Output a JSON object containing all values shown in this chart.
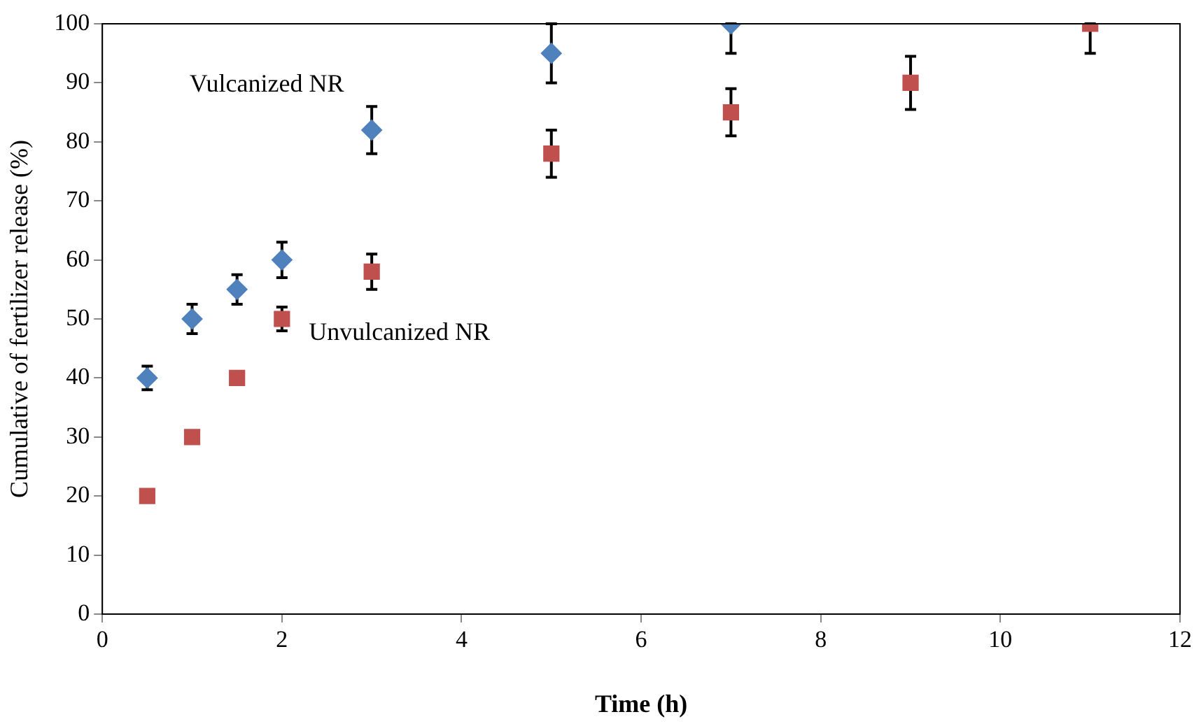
{
  "chart_data": {
    "type": "scatter",
    "xlabel": "Time (h)",
    "ylabel": "Cumulative of fertilizer release (%)",
    "xlim": [
      0,
      12
    ],
    "xticks": [
      0,
      2,
      4,
      6,
      8,
      10,
      12
    ],
    "ylim": [
      0,
      100
    ],
    "yticks": [
      0,
      10,
      20,
      30,
      40,
      50,
      60,
      70,
      80,
      90,
      100
    ],
    "grid": false,
    "legend": false,
    "series": [
      {
        "name": "Vulcanized NR",
        "color": "#4f81bd",
        "marker": "diamond",
        "x": [
          0.5,
          1,
          1.5,
          2,
          3,
          5,
          7
        ],
        "values": [
          40,
          50,
          55,
          60,
          82,
          95,
          100
        ],
        "errors": [
          [
            38,
            42
          ],
          [
            47.5,
            52.5
          ],
          [
            52.5,
            57.5
          ],
          [
            57,
            63
          ],
          [
            78,
            86
          ],
          [
            90,
            100
          ],
          [
            95,
            100
          ]
        ]
      },
      {
        "name": "Unvulcanized NR",
        "color": "#c0504d",
        "marker": "square",
        "x": [
          0.5,
          1,
          1.5,
          2,
          3,
          5,
          7,
          9,
          11
        ],
        "values": [
          20,
          30,
          40,
          50,
          58,
          78,
          85,
          90,
          100
        ],
        "errors": [
          null,
          null,
          null,
          [
            48,
            52
          ],
          [
            55,
            61
          ],
          [
            74,
            82
          ],
          [
            81,
            89
          ],
          [
            85.5,
            94.5
          ],
          [
            95,
            100
          ]
        ]
      }
    ]
  }
}
